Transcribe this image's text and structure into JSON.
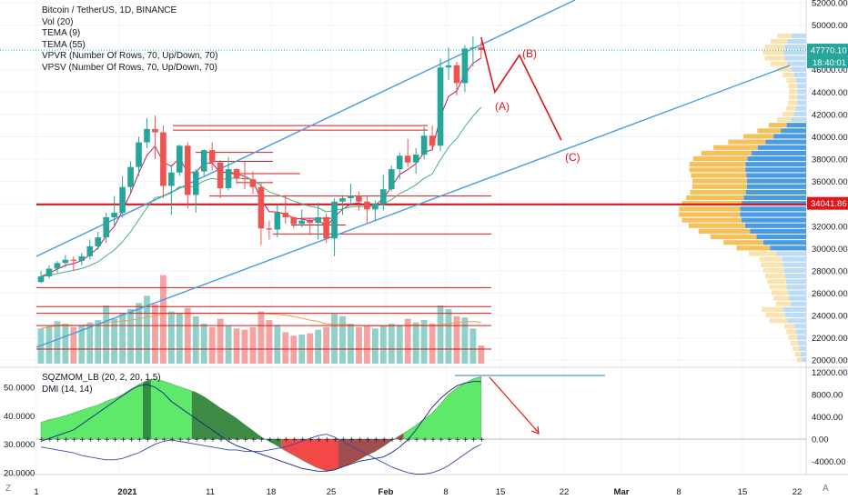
{
  "legend": {
    "title": "Bitcoin / TetherUS, 1D, BINANCE",
    "lines": [
      "Vol (20)",
      "TEMA (9)",
      "TEMA (55)",
      "VPVR (Number Of Rows, 70, Up/Down, 70)",
      "VPSV (Number Of Rows, 70, Up/Down, 70)"
    ]
  },
  "osc_legend": [
    "SQZMOM_LB (20, 2, 20, 1.5)",
    "DMI (14, 14)"
  ],
  "price_axis": {
    "ticks": [
      "52000.00",
      "50000.00",
      "48000.00",
      "46000.00",
      "44000.00",
      "42000.00",
      "40000.00",
      "38000.00",
      "36000.00",
      "34000.00",
      "32000.00",
      "30000.00",
      "28000.00",
      "26000.00",
      "24000.00",
      "22000.00",
      "20000.00"
    ],
    "values": [
      52000,
      50000,
      48000,
      46000,
      44000,
      42000,
      40000,
      38000,
      36000,
      34000,
      32000,
      30000,
      28000,
      26000,
      24000,
      22000,
      20000
    ],
    "last_price": "47770.10",
    "countdown": "18:40:01",
    "level_label": "34041.86",
    "last_color": "#26a69a",
    "level_color": "#e0161a"
  },
  "osc_right_axis": {
    "ticks": [
      "12000.00",
      "8000.00",
      "4000.00",
      "0.00",
      "-4000.00"
    ],
    "values": [
      12000,
      8000,
      4000,
      0,
      -4000
    ]
  },
  "osc_left_axis": {
    "ticks": [
      "50.0000",
      "40.0000",
      "30.0000",
      "20.0000"
    ],
    "values": [
      50,
      40,
      30,
      20
    ]
  },
  "time_axis": {
    "labels": [
      "1",
      "2021",
      "11",
      "18",
      "25",
      "Feb",
      "8",
      "15",
      "22",
      "Mar",
      "8",
      "15",
      "22"
    ],
    "corner_left": "Z",
    "corner_right": "A"
  },
  "wave_labels": [
    "(A)",
    "(B)",
    "(C)"
  ],
  "chart_data": {
    "type": "candlestick",
    "symbol": "Bitcoin / TetherUS",
    "interval": "1D",
    "exchange": "BINANCE",
    "up_color": "#26a69a",
    "down_color": "#ef5350",
    "ohlc": [
      [
        27000,
        28000,
        26900,
        27500
      ],
      [
        27500,
        28500,
        27300,
        28200
      ],
      [
        28200,
        28900,
        27800,
        28700
      ],
      [
        28700,
        29400,
        28300,
        29000
      ],
      [
        29000,
        29300,
        28000,
        28900
      ],
      [
        28900,
        29600,
        28500,
        29300
      ],
      [
        29300,
        30800,
        29000,
        30200
      ],
      [
        30200,
        31500,
        29900,
        31000
      ],
      [
        31000,
        33200,
        30500,
        32800
      ],
      [
        32800,
        34700,
        32000,
        33200
      ],
      [
        33200,
        36500,
        32800,
        35500
      ],
      [
        35500,
        37800,
        35000,
        37300
      ],
      [
        37300,
        40000,
        36500,
        39500
      ],
      [
        39500,
        41700,
        39000,
        40700
      ],
      [
        40700,
        41900,
        38000,
        40400
      ],
      [
        40400,
        41000,
        34500,
        35600
      ],
      [
        35600,
        37500,
        33000,
        36800
      ],
      [
        36800,
        39300,
        36500,
        39200
      ],
      [
        39200,
        39500,
        33600,
        34800
      ],
      [
        34800,
        37100,
        33200,
        36900
      ],
      [
        36900,
        38900,
        36500,
        38800
      ],
      [
        38800,
        39500,
        37000,
        37700
      ],
      [
        37700,
        37900,
        34500,
        35400
      ],
      [
        35400,
        38200,
        35200,
        37100
      ],
      [
        37100,
        37200,
        35800,
        36300
      ],
      [
        36300,
        37800,
        35300,
        36200
      ],
      [
        36200,
        36900,
        34900,
        35500
      ],
      [
        35500,
        35900,
        30300,
        31800
      ],
      [
        31800,
        32500,
        30800,
        31700
      ],
      [
        31700,
        33900,
        31000,
        33200
      ],
      [
        33200,
        34800,
        32200,
        32800
      ],
      [
        32800,
        32900,
        31800,
        32200
      ],
      [
        32200,
        33500,
        31900,
        32500
      ],
      [
        32500,
        32700,
        31200,
        32300
      ],
      [
        32300,
        34100,
        30800,
        32800
      ],
      [
        32800,
        33100,
        30500,
        30900
      ],
      [
        30900,
        34500,
        29300,
        34200
      ],
      [
        34200,
        34800,
        33000,
        34500
      ],
      [
        34500,
        35800,
        33800,
        34700
      ],
      [
        34700,
        35100,
        33400,
        34200
      ],
      [
        34200,
        34700,
        32300,
        33500
      ],
      [
        33500,
        34300,
        32500,
        34000
      ],
      [
        34000,
        36600,
        33400,
        35300
      ],
      [
        35300,
        37400,
        35100,
        37100
      ],
      [
        37100,
        38600,
        36200,
        38300
      ],
      [
        38300,
        39800,
        37300,
        37700
      ],
      [
        37700,
        39000,
        36700,
        38400
      ],
      [
        38400,
        40900,
        38000,
        40100
      ],
      [
        40100,
        41000,
        38900,
        39200
      ],
      [
        39200,
        47000,
        38700,
        46200
      ],
      [
        46200,
        48000,
        45100,
        46400
      ],
      [
        46400,
        46700,
        43700,
        44800
      ],
      [
        44800,
        48200,
        44000,
        47900
      ],
      [
        47900,
        49000,
        46300,
        48000
      ],
      [
        48000,
        48500,
        47000,
        47770
      ]
    ],
    "volume": [
      58000,
      62000,
      70000,
      66000,
      60000,
      64000,
      68000,
      72000,
      96000,
      74000,
      84000,
      90000,
      100000,
      112000,
      98000,
      146000,
      86000,
      84000,
      92000,
      78000,
      66000,
      60000,
      74000,
      62000,
      58000,
      56000,
      60000,
      86000,
      72000,
      64000,
      52000,
      46000,
      48000,
      50000,
      56000,
      60000,
      82000,
      78000,
      66000,
      60000,
      62000,
      58000,
      62000,
      66000,
      64000,
      74000,
      68000,
      72000,
      66000,
      96000,
      90000,
      78000,
      76000,
      58000,
      30000
    ],
    "key_level": 34041.86,
    "wave_path": {
      "A": 44000,
      "B": 47300,
      "C": 39700
    },
    "momentum": [
      3000,
      3500,
      3800,
      4200,
      4700,
      5200,
      5700,
      6100,
      6800,
      7300,
      8000,
      8900,
      9800,
      10500,
      10800,
      10400,
      9900,
      9400,
      8900,
      8400,
      7600,
      6600,
      5600,
      4700,
      3700,
      2600,
      1500,
      400,
      -400,
      -1200,
      -2100,
      -2900,
      -3700,
      -4500,
      -5200,
      -5700,
      -5500,
      -5000,
      -4400,
      -3700,
      -2900,
      -2200,
      -1300,
      -300,
      600,
      1500,
      2500,
      3600,
      4700,
      6300,
      8000,
      9200,
      10000,
      10800,
      11200
    ],
    "momentum_ylim": [
      -5000,
      12500
    ],
    "dmi_ylim": [
      17,
      52
    ]
  }
}
